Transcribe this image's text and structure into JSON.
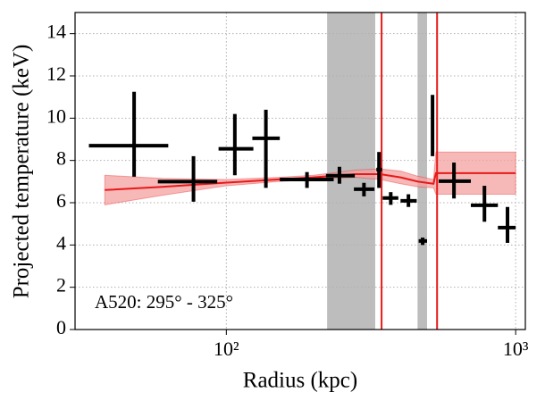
{
  "chart_data": {
    "type": "errorbar",
    "xlabel": "Radius (kpc)",
    "ylabel": "Projected temperature (keV)",
    "annotation": "A520: 295° - 325°",
    "xlog": true,
    "xlim": [
      30,
      1080
    ],
    "ylim": [
      0,
      15
    ],
    "xticks": [
      {
        "value": 100,
        "label": "10²"
      },
      {
        "value": 1000,
        "label": "10³"
      }
    ],
    "yticks": [
      0,
      2,
      4,
      6,
      8,
      10,
      12,
      14
    ],
    "grid": true,
    "color": "#000000",
    "x": [
      48,
      77,
      107,
      137,
      190,
      246,
      299,
      337,
      370,
      426,
      477,
      516,
      612,
      780,
      937
    ],
    "x_low": [
      33.5,
      58,
      94,
      123,
      153,
      221,
      276,
      330,
      347,
      400,
      462,
      510,
      542,
      700,
      868
    ],
    "x_high": [
      63,
      93,
      124,
      153,
      235,
      278,
      325,
      345,
      393,
      455,
      494,
      522,
      700,
      868,
      1000
    ],
    "values": [
      8.7,
      7.0,
      8.55,
      9.05,
      7.1,
      7.28,
      6.64,
      7.57,
      6.22,
      6.09,
      4.19,
      9.48,
      7.02,
      5.88,
      4.82
    ],
    "y_low": [
      7.23,
      6.05,
      7.3,
      6.7,
      6.7,
      6.9,
      6.3,
      6.7,
      5.9,
      5.8,
      4.0,
      8.2,
      6.2,
      5.1,
      4.1
    ],
    "y_high": [
      11.25,
      8.2,
      10.2,
      10.4,
      7.45,
      7.7,
      6.94,
      8.4,
      6.5,
      6.4,
      4.35,
      11.1,
      7.9,
      6.8,
      5.8
    ],
    "model": {
      "color": "#e8191a",
      "band_color": "#f4a0a0",
      "x": [
        38,
        60,
        100,
        150,
        200,
        280,
        340,
        400,
        460,
        520,
        530,
        600,
        800,
        1000
      ],
      "values": [
        6.6,
        6.75,
        6.95,
        7.1,
        7.2,
        7.35,
        7.35,
        7.2,
        7.0,
        6.9,
        7.4,
        7.4,
        7.4,
        7.4
      ],
      "band_low": [
        5.9,
        6.35,
        6.8,
        7.0,
        7.1,
        7.2,
        7.1,
        6.9,
        6.75,
        6.7,
        6.4,
        6.4,
        6.4,
        6.4
      ],
      "band_high": [
        7.3,
        7.15,
        7.1,
        7.2,
        7.3,
        7.55,
        7.6,
        7.5,
        7.25,
        7.1,
        8.4,
        8.4,
        8.4,
        8.4
      ]
    },
    "shaded_regions": [
      [
        223,
        327
      ],
      [
        458,
        494
      ]
    ],
    "shaded_color": "#bdbdbd",
    "vlines": [
      344,
      535
    ],
    "vline_color": "#e8191a"
  }
}
